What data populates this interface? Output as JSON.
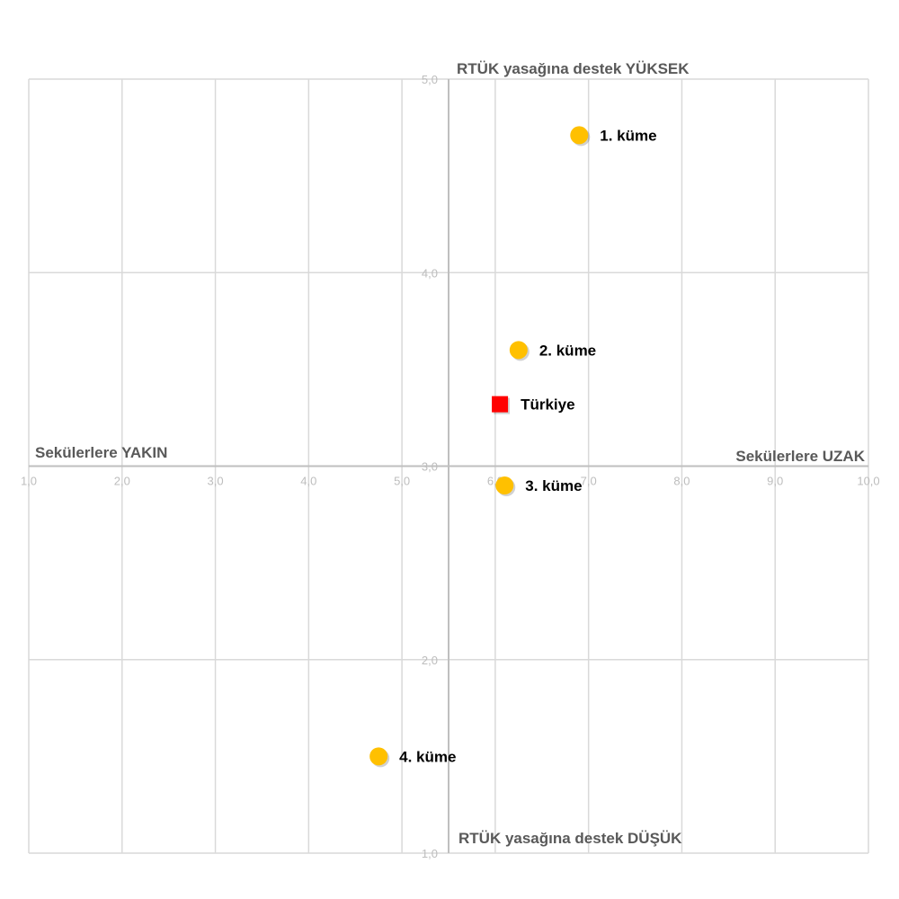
{
  "chart_data": {
    "type": "scatter",
    "xlim": [
      1.0,
      10.0
    ],
    "ylim": [
      1.0,
      5.0
    ],
    "x_ticks": [
      "1,0",
      "2,0",
      "3,0",
      "4,0",
      "5,0",
      "6,0",
      "7,0",
      "8,0",
      "9,0",
      "10,0"
    ],
    "y_ticks": [
      "1,0",
      "2,0",
      "3,0",
      "4,0",
      "5,0"
    ],
    "x_tick_values": [
      1,
      2,
      3,
      4,
      5,
      6,
      7,
      8,
      9,
      10
    ],
    "y_tick_values": [
      1,
      2,
      3,
      4,
      5
    ],
    "axis_cross": {
      "x": 5.5,
      "y": 3.0
    },
    "grid": true,
    "labels": {
      "top": "RTÜK yasağına destek YÜKSEK",
      "bottom": "RTÜK yasağına destek DÜŞÜK",
      "left": "Sekülerlere YAKIN",
      "right": "Sekülerlere UZAK"
    },
    "points": [
      {
        "label": "1. küme",
        "x": 6.9,
        "y": 4.71,
        "shape": "circle",
        "color": "#FFC000"
      },
      {
        "label": "2. küme",
        "x": 6.25,
        "y": 3.6,
        "shape": "circle",
        "color": "#FFC000"
      },
      {
        "label": "Türkiye",
        "x": 6.05,
        "y": 3.32,
        "shape": "square",
        "color": "#FF0000"
      },
      {
        "label": "3. küme",
        "x": 6.1,
        "y": 2.9,
        "shape": "circle",
        "color": "#FFC000"
      },
      {
        "label": "4. küme",
        "x": 4.75,
        "y": 1.5,
        "shape": "circle",
        "color": "#FFC000"
      }
    ]
  }
}
